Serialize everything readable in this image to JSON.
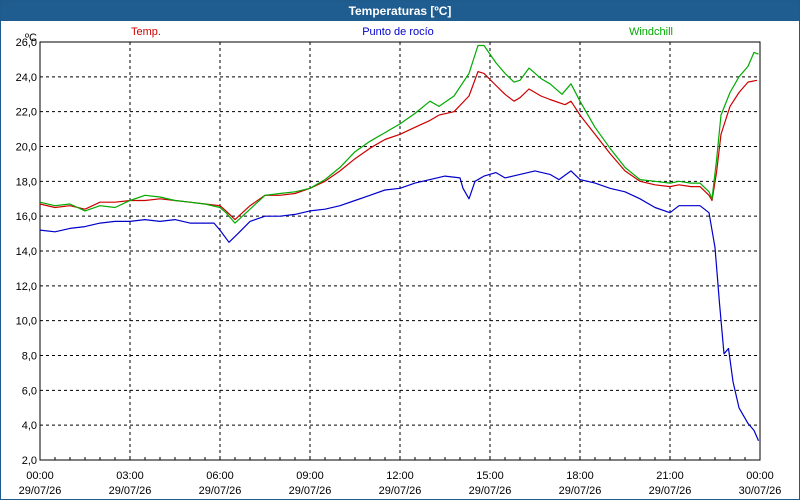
{
  "window": {
    "title": "Temperaturas [ºC]"
  },
  "chart_data": {
    "type": "line",
    "title": "Temperaturas [ºC]",
    "ylabel": "ºC",
    "xlabel": "",
    "ylim": [
      2.0,
      26.0
    ],
    "y_ticks": [
      "2,0",
      "4,0",
      "6,0",
      "8,0",
      "10,0",
      "12,0",
      "14,0",
      "16,0",
      "18,0",
      "20,0",
      "22,0",
      "24,0",
      "26,0"
    ],
    "x_ticks": [
      {
        "time": "00:00",
        "date": "29/07/26"
      },
      {
        "time": "03:00",
        "date": "29/07/26"
      },
      {
        "time": "06:00",
        "date": "29/07/26"
      },
      {
        "time": "09:00",
        "date": "29/07/26"
      },
      {
        "time": "12:00",
        "date": "29/07/26"
      },
      {
        "time": "15:00",
        "date": "29/07/26"
      },
      {
        "time": "18:00",
        "date": "29/07/26"
      },
      {
        "time": "21:00",
        "date": "29/07/26"
      },
      {
        "time": "00:00",
        "date": "30/07/26"
      }
    ],
    "grid": true,
    "legend_position": "top",
    "series": [
      {
        "name": "Temp.",
        "color": "#cc0000",
        "points": [
          [
            0,
            16.7
          ],
          [
            0.5,
            16.5
          ],
          [
            1,
            16.6
          ],
          [
            1.5,
            16.4
          ],
          [
            2,
            16.8
          ],
          [
            2.5,
            16.8
          ],
          [
            3,
            16.9
          ],
          [
            3.5,
            16.9
          ],
          [
            4,
            17.0
          ],
          [
            4.5,
            16.9
          ],
          [
            5,
            16.8
          ],
          [
            5.5,
            16.7
          ],
          [
            6,
            16.6
          ],
          [
            6.2,
            16.3
          ],
          [
            6.5,
            15.8
          ],
          [
            7,
            16.6
          ],
          [
            7.5,
            17.2
          ],
          [
            8,
            17.2
          ],
          [
            8.5,
            17.3
          ],
          [
            9,
            17.6
          ],
          [
            9.5,
            18.0
          ],
          [
            10,
            18.6
          ],
          [
            10.5,
            19.3
          ],
          [
            11,
            19.9
          ],
          [
            11.5,
            20.4
          ],
          [
            12,
            20.7
          ],
          [
            12.5,
            21.1
          ],
          [
            13,
            21.5
          ],
          [
            13.3,
            21.8
          ],
          [
            13.8,
            22.0
          ],
          [
            14.3,
            22.9
          ],
          [
            14.6,
            24.3
          ],
          [
            14.8,
            24.2
          ],
          [
            15.2,
            23.5
          ],
          [
            15.5,
            23.0
          ],
          [
            15.8,
            22.6
          ],
          [
            16,
            22.8
          ],
          [
            16.3,
            23.3
          ],
          [
            16.7,
            22.9
          ],
          [
            17,
            22.7
          ],
          [
            17.5,
            22.4
          ],
          [
            17.7,
            22.6
          ],
          [
            18,
            21.8
          ],
          [
            18.5,
            20.7
          ],
          [
            19,
            19.6
          ],
          [
            19.5,
            18.6
          ],
          [
            20,
            18.0
          ],
          [
            20.5,
            17.8
          ],
          [
            21,
            17.7
          ],
          [
            21.3,
            17.8
          ],
          [
            21.7,
            17.7
          ],
          [
            22,
            17.7
          ],
          [
            22.3,
            17.2
          ],
          [
            22.4,
            16.9
          ],
          [
            22.55,
            18.5
          ],
          [
            22.7,
            20.7
          ],
          [
            23,
            22.3
          ],
          [
            23.3,
            23.1
          ],
          [
            23.6,
            23.7
          ],
          [
            23.9,
            23.8
          ]
        ]
      },
      {
        "name": "Punto de rocío",
        "color": "#0000cc",
        "points": [
          [
            0,
            15.2
          ],
          [
            0.5,
            15.1
          ],
          [
            1,
            15.3
          ],
          [
            1.5,
            15.4
          ],
          [
            2,
            15.6
          ],
          [
            2.5,
            15.7
          ],
          [
            3,
            15.7
          ],
          [
            3.5,
            15.8
          ],
          [
            4,
            15.7
          ],
          [
            4.5,
            15.8
          ],
          [
            5,
            15.6
          ],
          [
            5.5,
            15.6
          ],
          [
            5.8,
            15.6
          ],
          [
            6,
            15.2
          ],
          [
            6.3,
            14.5
          ],
          [
            6.6,
            15.0
          ],
          [
            7,
            15.7
          ],
          [
            7.5,
            16.0
          ],
          [
            8,
            16.0
          ],
          [
            8.5,
            16.1
          ],
          [
            9,
            16.3
          ],
          [
            9.5,
            16.4
          ],
          [
            10,
            16.6
          ],
          [
            10.5,
            16.9
          ],
          [
            11,
            17.2
          ],
          [
            11.5,
            17.5
          ],
          [
            12,
            17.6
          ],
          [
            12.5,
            17.9
          ],
          [
            13,
            18.1
          ],
          [
            13.5,
            18.3
          ],
          [
            14,
            18.2
          ],
          [
            14.1,
            17.6
          ],
          [
            14.3,
            17.0
          ],
          [
            14.5,
            18.0
          ],
          [
            14.8,
            18.3
          ],
          [
            15.2,
            18.5
          ],
          [
            15.5,
            18.2
          ],
          [
            16,
            18.4
          ],
          [
            16.5,
            18.6
          ],
          [
            17,
            18.4
          ],
          [
            17.3,
            18.1
          ],
          [
            17.7,
            18.6
          ],
          [
            18,
            18.1
          ],
          [
            18.5,
            17.9
          ],
          [
            19,
            17.6
          ],
          [
            19.5,
            17.4
          ],
          [
            20,
            17.0
          ],
          [
            20.5,
            16.5
          ],
          [
            21,
            16.2
          ],
          [
            21.3,
            16.6
          ],
          [
            21.7,
            16.6
          ],
          [
            22,
            16.6
          ],
          [
            22.3,
            16.2
          ],
          [
            22.5,
            14.2
          ],
          [
            22.65,
            11.0
          ],
          [
            22.8,
            8.1
          ],
          [
            22.95,
            8.4
          ],
          [
            23.1,
            6.5
          ],
          [
            23.3,
            5.0
          ],
          [
            23.6,
            4.1
          ],
          [
            23.8,
            3.7
          ],
          [
            23.95,
            3.1
          ]
        ]
      },
      {
        "name": "Windchill",
        "color": "#00aa00",
        "points": [
          [
            0,
            16.8
          ],
          [
            0.5,
            16.6
          ],
          [
            1,
            16.7
          ],
          [
            1.5,
            16.3
          ],
          [
            2,
            16.6
          ],
          [
            2.5,
            16.5
          ],
          [
            3,
            16.9
          ],
          [
            3.5,
            17.2
          ],
          [
            4,
            17.1
          ],
          [
            4.5,
            16.9
          ],
          [
            5,
            16.8
          ],
          [
            5.5,
            16.7
          ],
          [
            6,
            16.5
          ],
          [
            6.2,
            16.2
          ],
          [
            6.5,
            15.6
          ],
          [
            7,
            16.4
          ],
          [
            7.5,
            17.2
          ],
          [
            8,
            17.3
          ],
          [
            8.5,
            17.4
          ],
          [
            9,
            17.6
          ],
          [
            9.5,
            18.1
          ],
          [
            10,
            18.8
          ],
          [
            10.5,
            19.7
          ],
          [
            11,
            20.3
          ],
          [
            11.5,
            20.8
          ],
          [
            12,
            21.3
          ],
          [
            12.5,
            21.9
          ],
          [
            13,
            22.6
          ],
          [
            13.3,
            22.3
          ],
          [
            13.8,
            22.9
          ],
          [
            14.3,
            24.2
          ],
          [
            14.6,
            25.8
          ],
          [
            14.8,
            25.8
          ],
          [
            15.2,
            24.8
          ],
          [
            15.5,
            24.2
          ],
          [
            15.8,
            23.7
          ],
          [
            16,
            23.8
          ],
          [
            16.3,
            24.5
          ],
          [
            16.7,
            23.9
          ],
          [
            17,
            23.6
          ],
          [
            17.4,
            23.0
          ],
          [
            17.7,
            23.6
          ],
          [
            18,
            22.6
          ],
          [
            18.5,
            21.1
          ],
          [
            19,
            19.9
          ],
          [
            19.5,
            18.8
          ],
          [
            20,
            18.1
          ],
          [
            20.5,
            18.0
          ],
          [
            21,
            17.9
          ],
          [
            21.3,
            18.0
          ],
          [
            21.7,
            17.9
          ],
          [
            22,
            17.9
          ],
          [
            22.3,
            17.4
          ],
          [
            22.4,
            17.0
          ],
          [
            22.55,
            19.2
          ],
          [
            22.7,
            21.8
          ],
          [
            23,
            23.1
          ],
          [
            23.3,
            24.0
          ],
          [
            23.6,
            24.6
          ],
          [
            23.8,
            25.4
          ],
          [
            23.95,
            25.3
          ]
        ]
      }
    ]
  }
}
